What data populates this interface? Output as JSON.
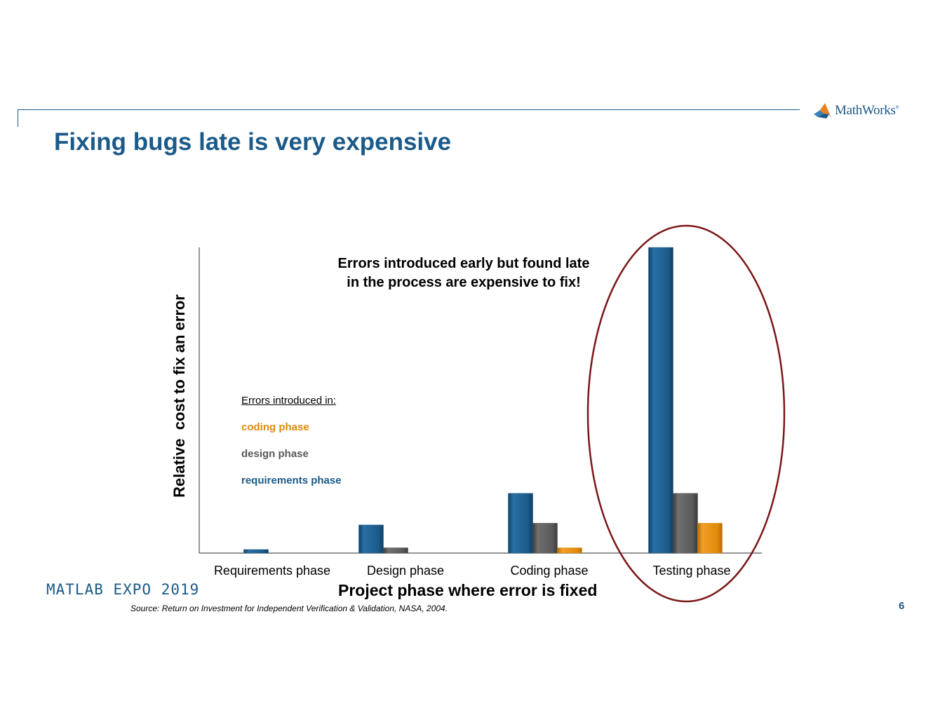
{
  "slide": {
    "title": "Fixing bugs late is very expensive",
    "footer_event": "MATLAB EXPO 2019",
    "source": "Source: Return on Investment for Independent Verification & Validation, NASA, 2004.",
    "page_number": "6"
  },
  "logo": {
    "name": "MathWorks",
    "mark": "®"
  },
  "chart_data": {
    "type": "bar",
    "title": "",
    "xlabel": "Project phase where error is fixed",
    "ylabel": "Relative  cost to fix an error",
    "categories": [
      "Requirements phase",
      "Design phase",
      "Coding phase",
      "Testing phase"
    ],
    "series": [
      {
        "name": "requirements phase",
        "color": "#1b5a89",
        "values": [
          1,
          8,
          17,
          87
        ]
      },
      {
        "name": "design phase",
        "color": "#595959",
        "values": [
          null,
          1.5,
          8.5,
          17
        ]
      },
      {
        "name": "coding phase",
        "color": "#e08a0b",
        "values": [
          null,
          null,
          1.5,
          8.5
        ]
      }
    ],
    "ylim": [
      0,
      87
    ],
    "y_ticks_shown": false,
    "grid": false,
    "legend": {
      "title": "Errors introduced in:",
      "placement": "left",
      "order": [
        "coding phase",
        "design phase",
        "requirements phase"
      ]
    },
    "annotation": {
      "lines": [
        "Errors introduced early but found late",
        "in the process are expensive to fix!"
      ],
      "highlight_category": "Testing phase",
      "highlight_color": "#7a1717"
    }
  }
}
